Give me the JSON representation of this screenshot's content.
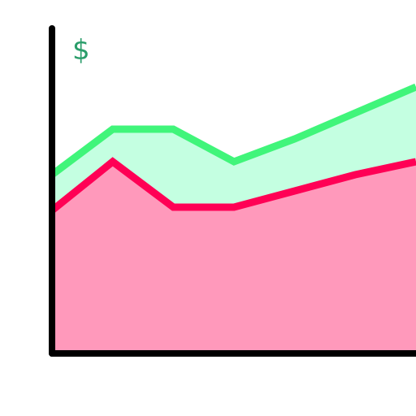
{
  "chart_data": {
    "type": "area",
    "title": "",
    "xlabel": "",
    "ylabel": "$",
    "x": [
      0,
      1,
      2,
      3,
      4,
      5,
      6
    ],
    "xlim": [
      0,
      6
    ],
    "ylim": [
      0,
      100
    ],
    "grid": false,
    "legend": "none",
    "series": [
      {
        "color": "#ff0055",
        "fill": "#ff99bb",
        "values": [
          44,
          59,
          45,
          45,
          50,
          55,
          59
        ]
      },
      {
        "color": "#40f57a",
        "fill": "#c4ffe1",
        "values": [
          55,
          69,
          69,
          59,
          66,
          74,
          82
        ]
      }
    ],
    "colors": {
      "axis": "#000000",
      "ylabel": "#2a9d6a"
    }
  }
}
